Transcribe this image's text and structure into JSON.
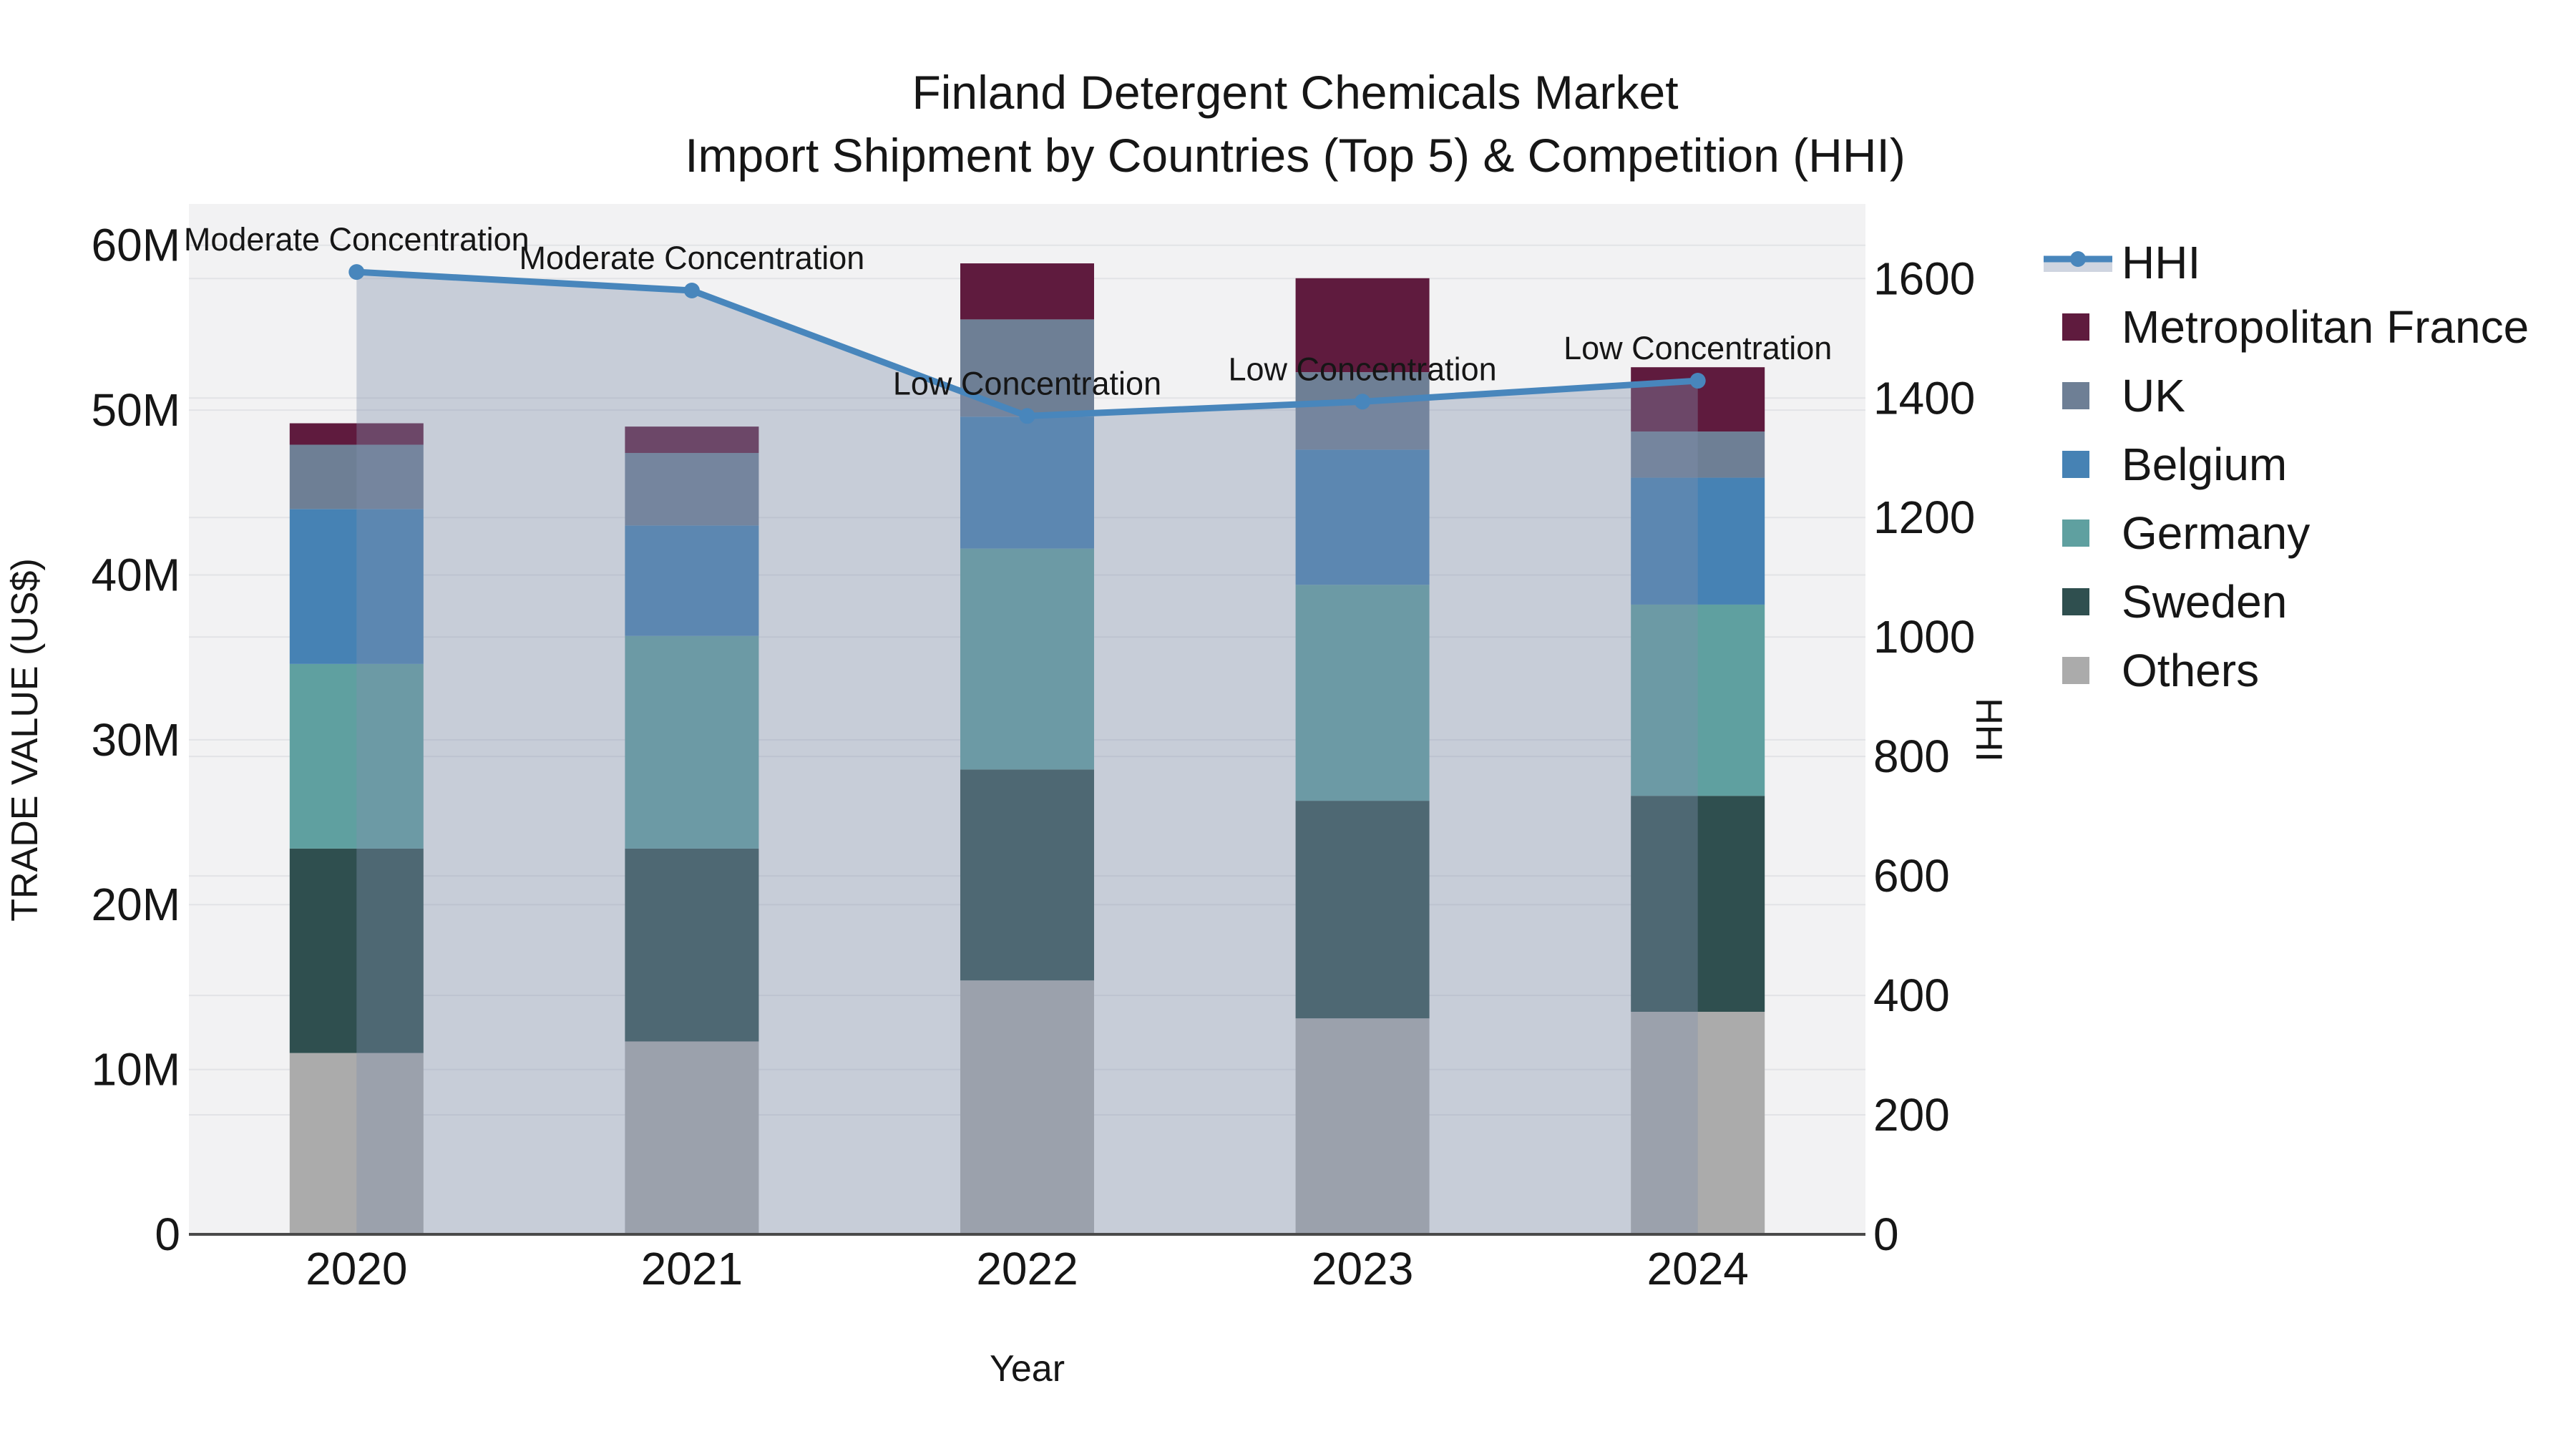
{
  "title": {
    "line1": "Finland Detergent Chemicals Market",
    "line2": "Import Shipment by Countries (Top 5) & Competition (HHI)"
  },
  "chart_data": {
    "type": "bar+line",
    "categories": [
      "2020",
      "2021",
      "2022",
      "2023",
      "2024"
    ],
    "bar_value_unit": "million US$",
    "stack_order_bottom_to_top": [
      "Others",
      "Sweden",
      "Germany",
      "Belgium",
      "UK",
      "Metropolitan France"
    ],
    "series": [
      {
        "name": "Metropolitan France",
        "color": "#5F1B3E",
        "values": [
          1.3,
          1.6,
          3.4,
          5.7,
          3.9
        ]
      },
      {
        "name": "UK",
        "color": "#6E7F95",
        "values": [
          3.9,
          4.4,
          5.9,
          4.7,
          2.8
        ]
      },
      {
        "name": "Belgium",
        "color": "#4682B4",
        "values": [
          9.4,
          6.7,
          8.0,
          8.2,
          7.7
        ]
      },
      {
        "name": "Germany",
        "color": "#5FA0A0",
        "values": [
          11.2,
          12.9,
          13.4,
          13.1,
          11.6
        ]
      },
      {
        "name": "Sweden",
        "color": "#2F4F4F",
        "values": [
          12.4,
          11.7,
          12.8,
          13.2,
          13.1
        ]
      },
      {
        "name": "Others",
        "color": "#ABABAB",
        "values": [
          11.0,
          11.7,
          15.4,
          13.1,
          13.5
        ]
      }
    ],
    "bar_totals": [
      49.2,
      49.0,
      58.9,
      58.0,
      52.6
    ],
    "line_series": {
      "name": "HHI",
      "color": "#4886BC",
      "area_fill_color": "rgba(128,144,174,0.38)",
      "values": [
        1611,
        1580,
        1370,
        1394,
        1429
      ]
    },
    "annotations": [
      {
        "category": "2020",
        "text": "Moderate Concentration"
      },
      {
        "category": "2021",
        "text": "Moderate Concentration"
      },
      {
        "category": "2022",
        "text": "Low Concentration"
      },
      {
        "category": "2023",
        "text": "Low Concentration"
      },
      {
        "category": "2024",
        "text": "Low Concentration"
      }
    ],
    "xlabel": "Year",
    "ylabel_left": "TRADE VALUE (US$)",
    "ylabel_right": "HHI",
    "y_left_ticks": [
      "0",
      "10M",
      "20M",
      "30M",
      "40M",
      "50M",
      "60M"
    ],
    "y_left_tick_values": [
      0,
      10,
      20,
      30,
      40,
      50,
      60
    ],
    "y_left_range": [
      0,
      60
    ],
    "y_right_ticks": [
      "0",
      "200",
      "400",
      "600",
      "800",
      "1000",
      "1200",
      "1400",
      "1600"
    ],
    "y_right_tick_values": [
      0,
      200,
      400,
      600,
      800,
      1000,
      1200,
      1400,
      1600
    ],
    "y_right_range": [
      0,
      1600
    ],
    "grid": true,
    "legend_position": "right",
    "legend_order": [
      "HHI",
      "Metropolitan France",
      "UK",
      "Belgium",
      "Germany",
      "Sweden",
      "Others"
    ]
  },
  "colors": {
    "figure_background": "#FFFFFF",
    "plot_background": "#F2F2F3",
    "gridline": "#E2E3E6",
    "axis_line": "#4A4A4A",
    "text": "#161616"
  }
}
